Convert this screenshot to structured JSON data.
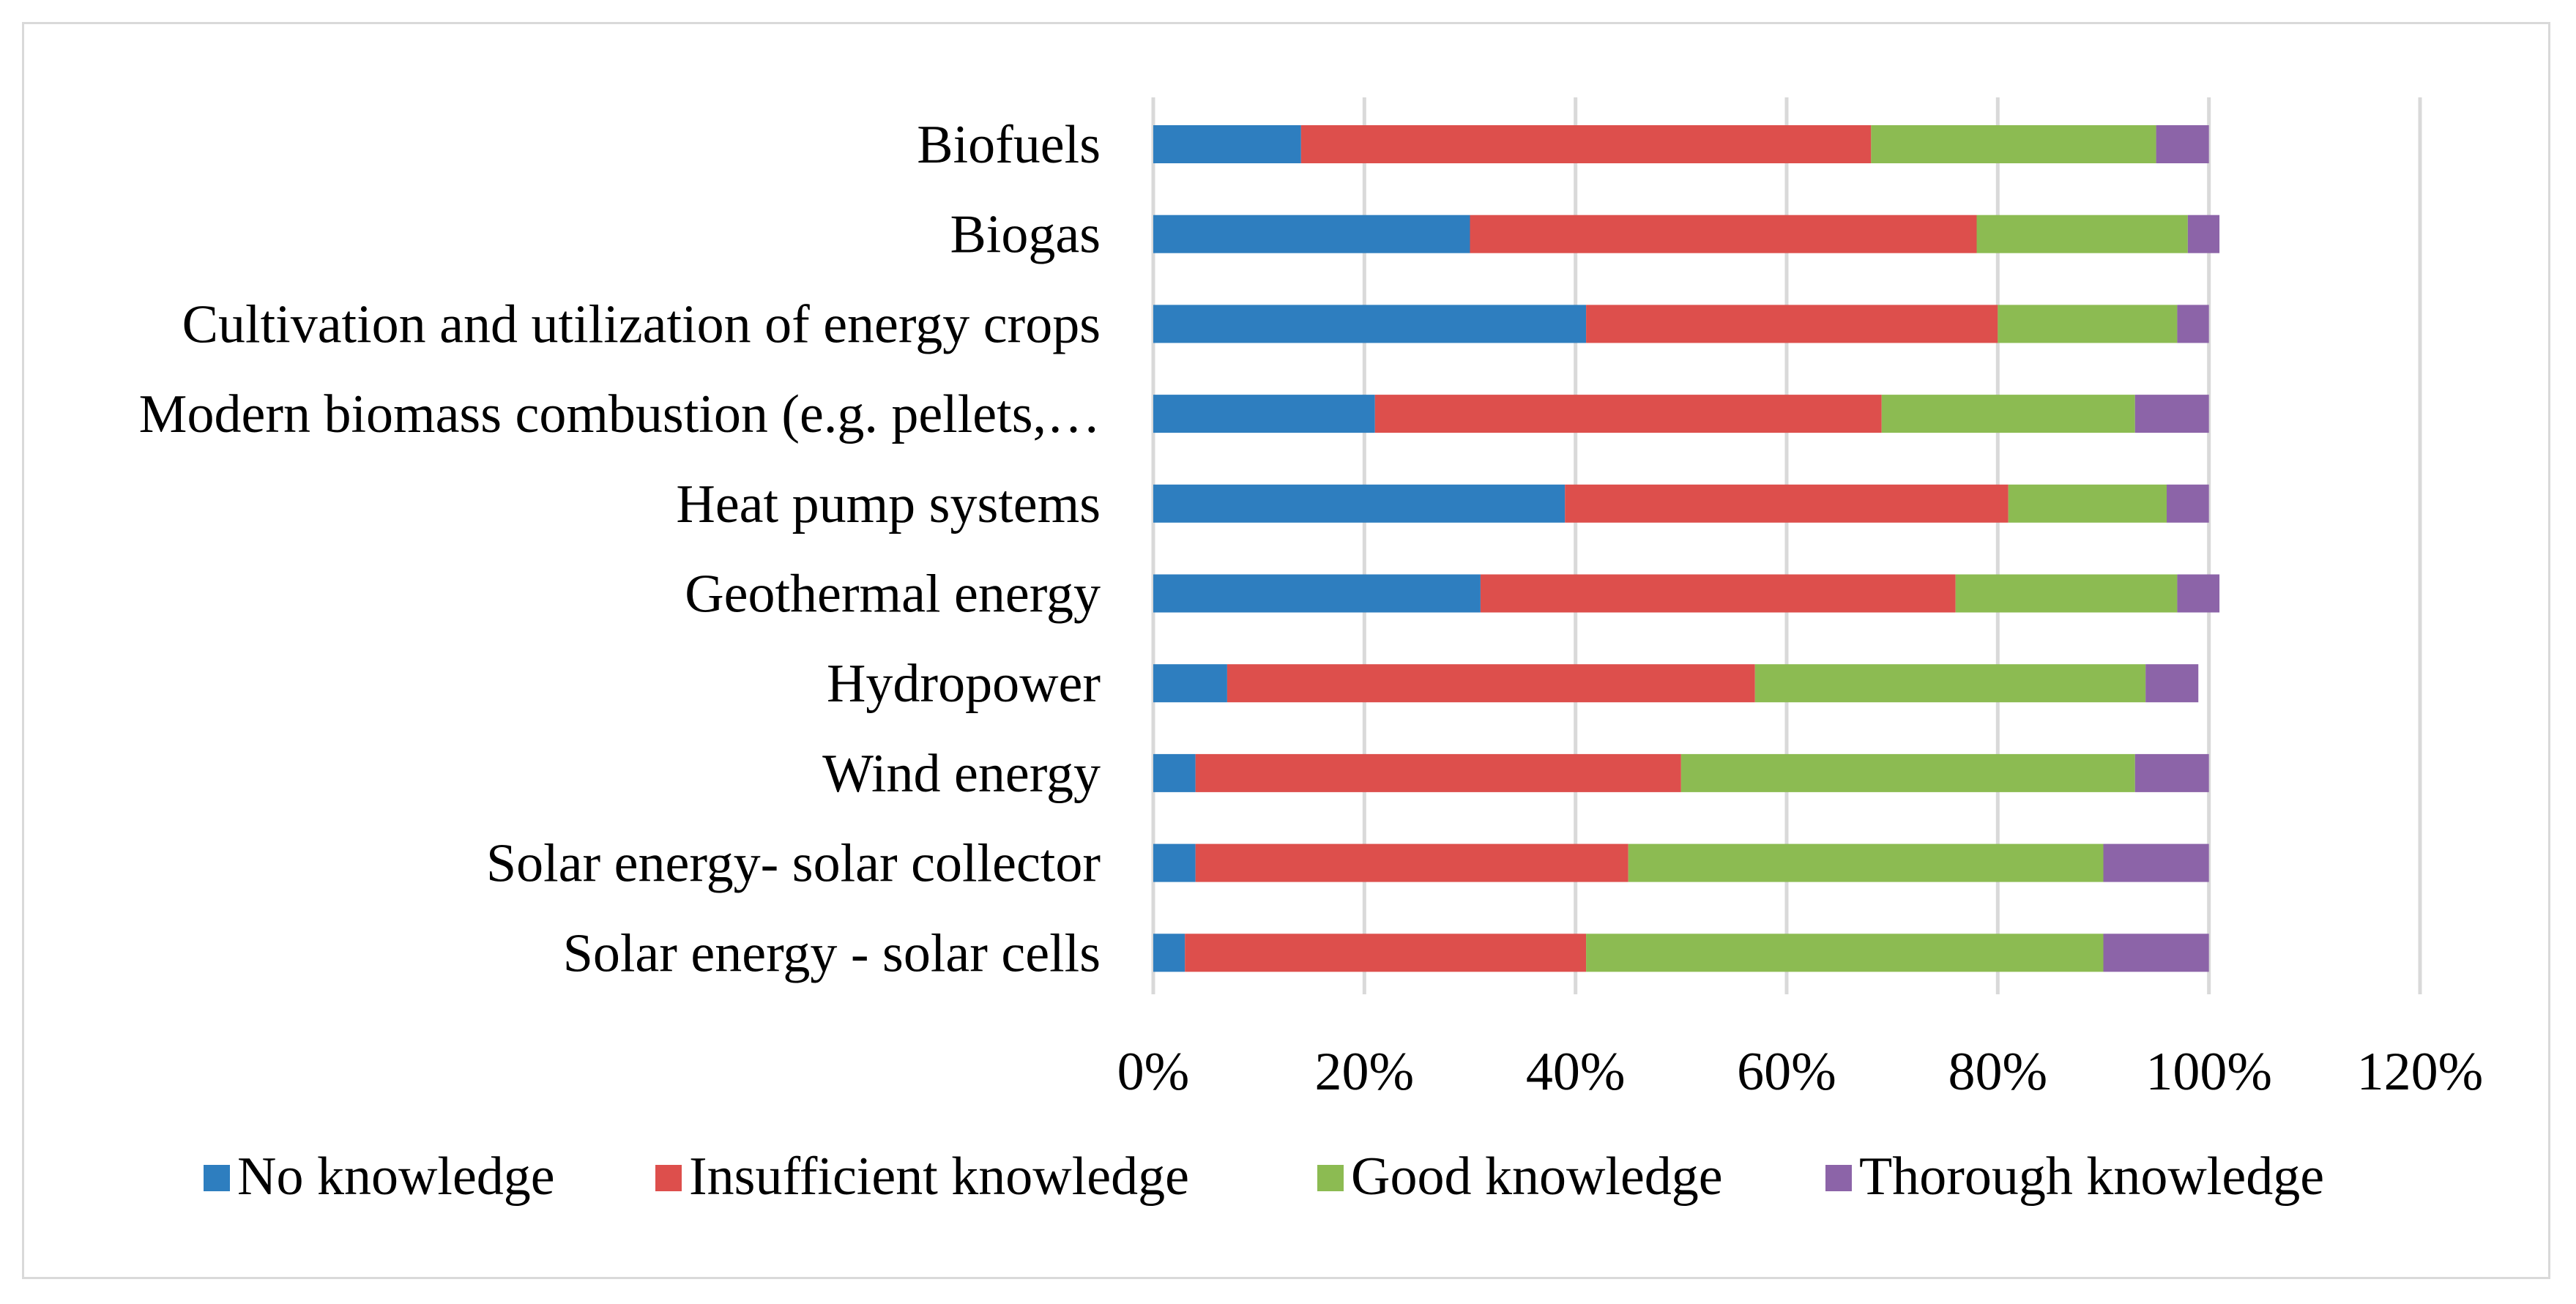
{
  "chart_data": {
    "type": "bar",
    "orientation": "horizontal",
    "stacked": true,
    "title": "",
    "xlabel": "",
    "ylabel": "",
    "categories": [
      "Biofuels",
      "Biogas",
      "Cultivation and utilization of energy crops",
      "Modern biomass combustion (e.g. pellets,…",
      "Heat pump systems",
      "Geothermal energy",
      "Hydropower",
      "Wind energy",
      "Solar energy- solar collector",
      "Solar energy - solar cells"
    ],
    "series": [
      {
        "name": "No knowledge",
        "color": "#2e7ebf",
        "values": [
          14,
          30,
          41,
          21,
          39,
          31,
          7,
          4,
          4,
          3
        ]
      },
      {
        "name": "Insufficient knowledge",
        "color": "#dd4f4c",
        "values": [
          54,
          48,
          39,
          48,
          42,
          45,
          50,
          46,
          41,
          38
        ]
      },
      {
        "name": "Good knowledge",
        "color": "#8cbb52",
        "values": [
          27,
          20,
          17,
          24,
          15,
          21,
          37,
          43,
          45,
          49
        ]
      },
      {
        "name": "Thorough knowledge",
        "color": "#8c64a8",
        "values": [
          5,
          3,
          3,
          7,
          4,
          4,
          5,
          7,
          10,
          10
        ]
      }
    ],
    "xlim": [
      0,
      120
    ],
    "xticks": [
      "0%",
      "20%",
      "40%",
      "60%",
      "80%",
      "100%",
      "120%"
    ],
    "grid": true,
    "legend": "bottom"
  }
}
